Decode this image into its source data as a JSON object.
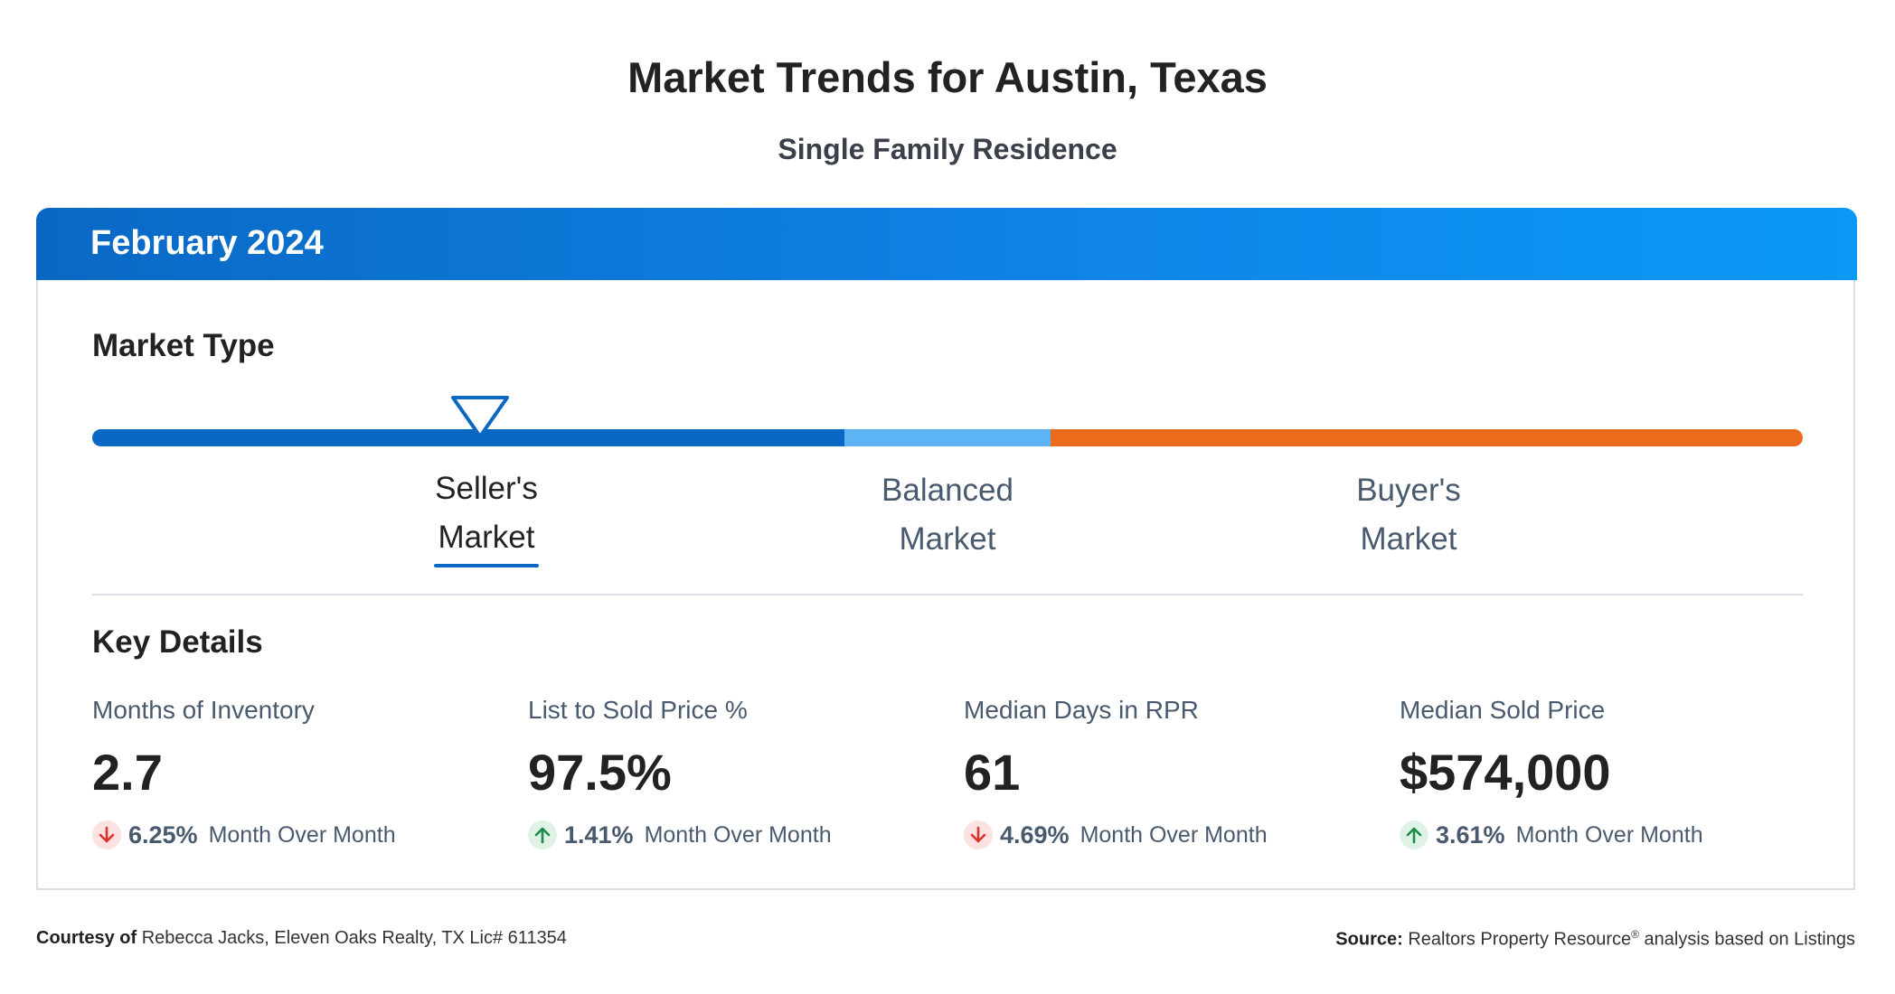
{
  "header": {
    "title": "Market Trends for Austin, Texas",
    "subtitle": "Single Family Residence"
  },
  "card": {
    "period": "February 2024",
    "market_type": {
      "heading": "Market Type",
      "segments": [
        {
          "name": "Seller's Market",
          "color": "#0a68c4",
          "share": 0.44
        },
        {
          "name": "Balanced Market",
          "color": "#5cb4f4",
          "share": 0.12
        },
        {
          "name": "Buyer's Market",
          "color": "#ea6b1c",
          "share": 0.44
        }
      ],
      "marker_position": 0.227,
      "labels": {
        "sellers_line1": "Seller's",
        "sellers_line2": "Market",
        "balanced_line1": "Balanced",
        "balanced_line2": "Market",
        "buyers_line1": "Buyer's",
        "buyers_line2": "Market"
      },
      "active": "Seller's Market"
    },
    "key_details": {
      "heading": "Key Details",
      "metrics": [
        {
          "label": "Months of Inventory",
          "value": "2.7",
          "direction": "down",
          "change": "6.25%",
          "change_text": "Month Over Month"
        },
        {
          "label": "List to Sold Price %",
          "value": "97.5%",
          "direction": "up",
          "change": "1.41%",
          "change_text": "Month Over Month"
        },
        {
          "label": "Median Days in RPR",
          "value": "61",
          "direction": "down",
          "change": "4.69%",
          "change_text": "Month Over Month"
        },
        {
          "label": "Median Sold Price",
          "value": "$574,000",
          "direction": "up",
          "change": "3.61%",
          "change_text": "Month Over Month"
        }
      ]
    }
  },
  "colors": {
    "down_arrow": "#d9342b",
    "up_arrow": "#1f8a4c",
    "marker_stroke": "#0a68c4"
  },
  "footer": {
    "courtesy_label": "Courtesy of",
    "courtesy_text": "Rebecca Jacks, Eleven Oaks Realty, TX Lic# 611354",
    "source_label": "Source:",
    "source_text_1": "Realtors Property Resource",
    "source_reg": "®",
    "source_text_2": "analysis based on Listings"
  }
}
